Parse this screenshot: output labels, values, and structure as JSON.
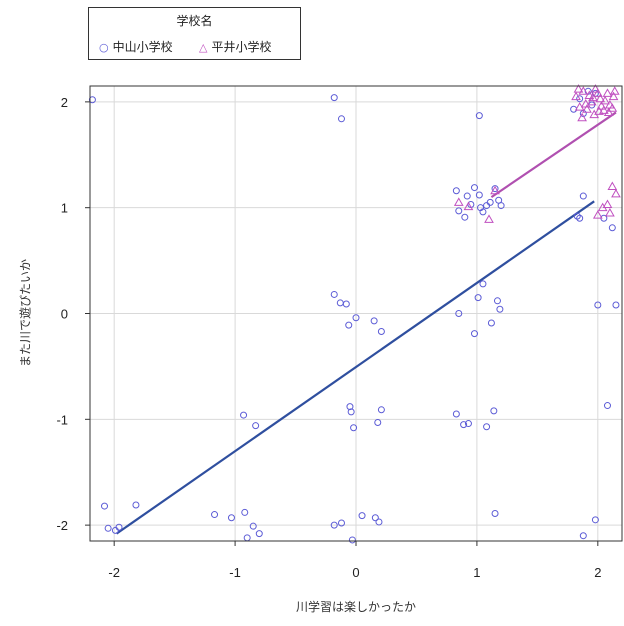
{
  "chart_data": {
    "type": "scatter",
    "title": "",
    "xlabel": "川学習は楽しかったか",
    "ylabel": "また川で遊びたいか",
    "xlim": [
      -2.2,
      2.2
    ],
    "ylim": [
      -2.15,
      2.15
    ],
    "xticks": [
      -2,
      -1,
      0,
      1,
      2
    ],
    "yticks": [
      -2,
      -1,
      0,
      1,
      2
    ],
    "grid": true,
    "legend": {
      "title": "学校名",
      "placement": "top-left, above plot",
      "entries": [
        "中山小学校",
        "平井小学校"
      ]
    },
    "series": [
      {
        "name": "中山小学校",
        "marker": "circle",
        "color": "#5c5cd6",
        "line_color": "#2f4f9f",
        "fit": {
          "x": [
            -1.98,
            1.97
          ],
          "y": [
            -2.08,
            1.06
          ]
        },
        "points": [
          [
            -2.18,
            2.02
          ],
          [
            -2.08,
            -1.82
          ],
          [
            -2.05,
            -2.03
          ],
          [
            -1.99,
            -2.05
          ],
          [
            -1.96,
            -2.02
          ],
          [
            -1.82,
            -1.81
          ],
          [
            -1.17,
            -1.9
          ],
          [
            -1.03,
            -1.93
          ],
          [
            -0.92,
            -1.88
          ],
          [
            -0.9,
            -2.12
          ],
          [
            -0.85,
            -2.01
          ],
          [
            -0.8,
            -2.08
          ],
          [
            -0.93,
            -0.96
          ],
          [
            -0.83,
            -1.06
          ],
          [
            -0.18,
            2.04
          ],
          [
            -0.12,
            1.84
          ],
          [
            -0.18,
            0.18
          ],
          [
            -0.13,
            0.1
          ],
          [
            -0.08,
            0.09
          ],
          [
            -0.06,
            -0.11
          ],
          [
            0.0,
            -0.04
          ],
          [
            0.15,
            -0.07
          ],
          [
            0.21,
            -0.17
          ],
          [
            -0.05,
            -0.88
          ],
          [
            -0.04,
            -0.93
          ],
          [
            -0.02,
            -1.08
          ],
          [
            0.18,
            -1.03
          ],
          [
            0.21,
            -0.91
          ],
          [
            -0.18,
            -2.0
          ],
          [
            -0.12,
            -1.98
          ],
          [
            -0.03,
            -2.14
          ],
          [
            0.05,
            -1.91
          ],
          [
            0.16,
            -1.93
          ],
          [
            0.19,
            -1.97
          ],
          [
            0.83,
            1.16
          ],
          [
            0.85,
            0.97
          ],
          [
            0.92,
            1.11
          ],
          [
            0.98,
            1.19
          ],
          [
            1.02,
            1.12
          ],
          [
            1.03,
            1.0
          ],
          [
            1.05,
            0.96
          ],
          [
            1.08,
            1.02
          ],
          [
            1.11,
            1.05
          ],
          [
            1.15,
            1.18
          ],
          [
            1.18,
            1.07
          ],
          [
            1.2,
            1.02
          ],
          [
            0.95,
            1.03
          ],
          [
            0.9,
            0.91
          ],
          [
            1.02,
            1.87
          ],
          [
            1.01,
            0.15
          ],
          [
            0.85,
            0.0
          ],
          [
            0.98,
            -0.19
          ],
          [
            1.05,
            0.28
          ],
          [
            1.12,
            -0.09
          ],
          [
            1.17,
            0.12
          ],
          [
            1.19,
            0.04
          ],
          [
            0.83,
            -0.95
          ],
          [
            0.89,
            -1.05
          ],
          [
            0.93,
            -1.04
          ],
          [
            1.08,
            -1.07
          ],
          [
            1.14,
            -0.92
          ],
          [
            1.15,
            -1.89
          ],
          [
            1.98,
            2.08
          ],
          [
            1.85,
            2.03
          ],
          [
            1.88,
            1.89
          ],
          [
            1.92,
            2.1
          ],
          [
            1.95,
            1.97
          ],
          [
            1.8,
            1.93
          ],
          [
            1.83,
            0.92
          ],
          [
            1.85,
            0.9
          ],
          [
            1.88,
            1.11
          ],
          [
            2.05,
            0.9
          ],
          [
            2.12,
            0.81
          ],
          [
            2.0,
            0.08
          ],
          [
            2.15,
            0.08
          ],
          [
            2.08,
            -0.87
          ],
          [
            1.98,
            -1.95
          ],
          [
            1.88,
            -2.1
          ]
        ]
      },
      {
        "name": "平井小学校",
        "marker": "triangle",
        "color": "#c050c0",
        "line_color": "#b050b0",
        "fit": {
          "x": [
            1.12,
            2.15
          ],
          "y": [
            1.1,
            1.9
          ]
        },
        "points": [
          [
            0.85,
            1.05
          ],
          [
            0.93,
            1.01
          ],
          [
            1.1,
            0.89
          ],
          [
            1.15,
            1.16
          ],
          [
            1.82,
            2.05
          ],
          [
            1.85,
            1.95
          ],
          [
            1.88,
            2.1
          ],
          [
            1.9,
            1.98
          ],
          [
            1.93,
            2.06
          ],
          [
            1.95,
            2.0
          ],
          [
            1.98,
            2.12
          ],
          [
            2.02,
            2.03
          ],
          [
            2.05,
            1.92
          ],
          [
            2.08,
            2.08
          ],
          [
            2.1,
            1.97
          ],
          [
            2.13,
            2.05
          ],
          [
            1.87,
            1.85
          ],
          [
            1.97,
            1.88
          ],
          [
            2.03,
            1.96
          ],
          [
            2.09,
            1.9
          ],
          [
            2.14,
            2.1
          ],
          [
            1.84,
            2.12
          ],
          [
            1.91,
            1.93
          ],
          [
            2.0,
            2.08
          ],
          [
            2.06,
            2.01
          ],
          [
            2.12,
            1.94
          ],
          [
            1.96,
            2.04
          ],
          [
            2.01,
            1.91
          ],
          [
            2.0,
            0.93
          ],
          [
            2.04,
            1.0
          ],
          [
            2.08,
            1.03
          ],
          [
            2.12,
            1.2
          ],
          [
            2.15,
            1.13
          ],
          [
            2.1,
            0.95
          ]
        ]
      }
    ]
  }
}
